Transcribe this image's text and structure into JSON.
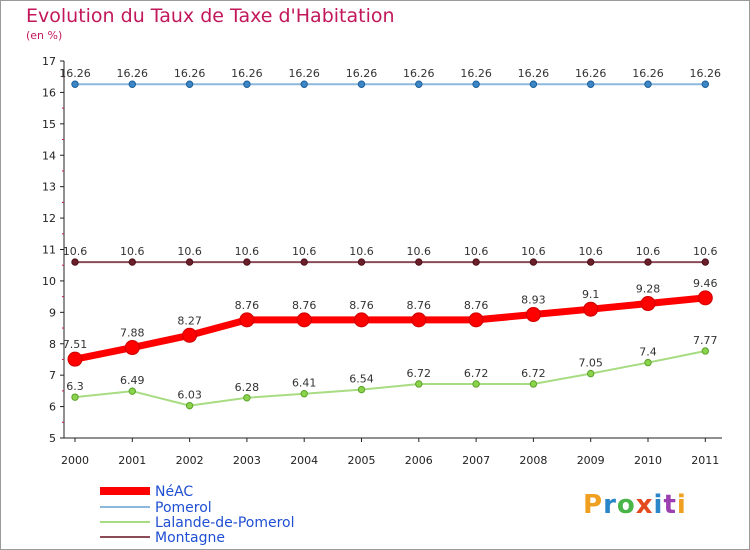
{
  "title": "Evolution du Taux de Taxe d'Habitation",
  "subtitle": "(en %)",
  "logo": "Proxiti",
  "chart_data": {
    "type": "line",
    "title": "Evolution du Taux de Taxe d'Habitation",
    "ylabel": "(en %)",
    "xlabel": "",
    "categories": [
      "2000",
      "2001",
      "2002",
      "2003",
      "2004",
      "2005",
      "2006",
      "2007",
      "2008",
      "2009",
      "2010",
      "2011"
    ],
    "ylim": [
      5,
      17
    ],
    "yticks": [
      5,
      6,
      7,
      8,
      9,
      10,
      11,
      12,
      13,
      14,
      15,
      16,
      17
    ],
    "grid": false,
    "legend_position": "bottom-left",
    "series": [
      {
        "name": "NéAC",
        "color": "#ff0000",
        "values": [
          7.51,
          7.88,
          8.27,
          8.76,
          8.76,
          8.76,
          8.76,
          8.76,
          8.93,
          9.1,
          9.28,
          9.46
        ],
        "labels": [
          "7.51",
          "7.88",
          "8.27",
          "8.76",
          "8.76",
          "8.76",
          "8.76",
          "8.76",
          "8.93",
          "9.1",
          "9.28",
          "9.46"
        ]
      },
      {
        "name": "Pomerol",
        "color": "#8db8dd",
        "values": [
          16.26,
          16.26,
          16.26,
          16.26,
          16.26,
          16.26,
          16.26,
          16.26,
          16.26,
          16.26,
          16.26,
          16.26
        ],
        "labels": [
          "16.26",
          "16.26",
          "16.26",
          "16.26",
          "16.26",
          "16.26",
          "16.26",
          "16.26",
          "16.26",
          "16.26",
          "16.26",
          "16.26"
        ]
      },
      {
        "name": "Lalande-de-Pomerol",
        "color": "#a8dc82",
        "values": [
          6.3,
          6.49,
          6.03,
          6.28,
          6.41,
          6.54,
          6.72,
          6.72,
          6.72,
          7.05,
          7.4,
          7.77
        ],
        "labels": [
          "6.3",
          "6.49",
          "6.03",
          "6.28",
          "6.41",
          "6.54",
          "6.72",
          "6.72",
          "6.72",
          "7.05",
          "7.4",
          "7.77"
        ]
      },
      {
        "name": "Montagne",
        "color": "#8b4c57",
        "values": [
          10.6,
          10.6,
          10.6,
          10.6,
          10.6,
          10.6,
          10.6,
          10.6,
          10.6,
          10.6,
          10.6,
          10.6
        ],
        "labels": [
          "10.6",
          "10.6",
          "10.6",
          "10.6",
          "10.6",
          "10.6",
          "10.6",
          "10.6",
          "10.6",
          "10.6",
          "10.6",
          "10.6"
        ]
      }
    ]
  }
}
